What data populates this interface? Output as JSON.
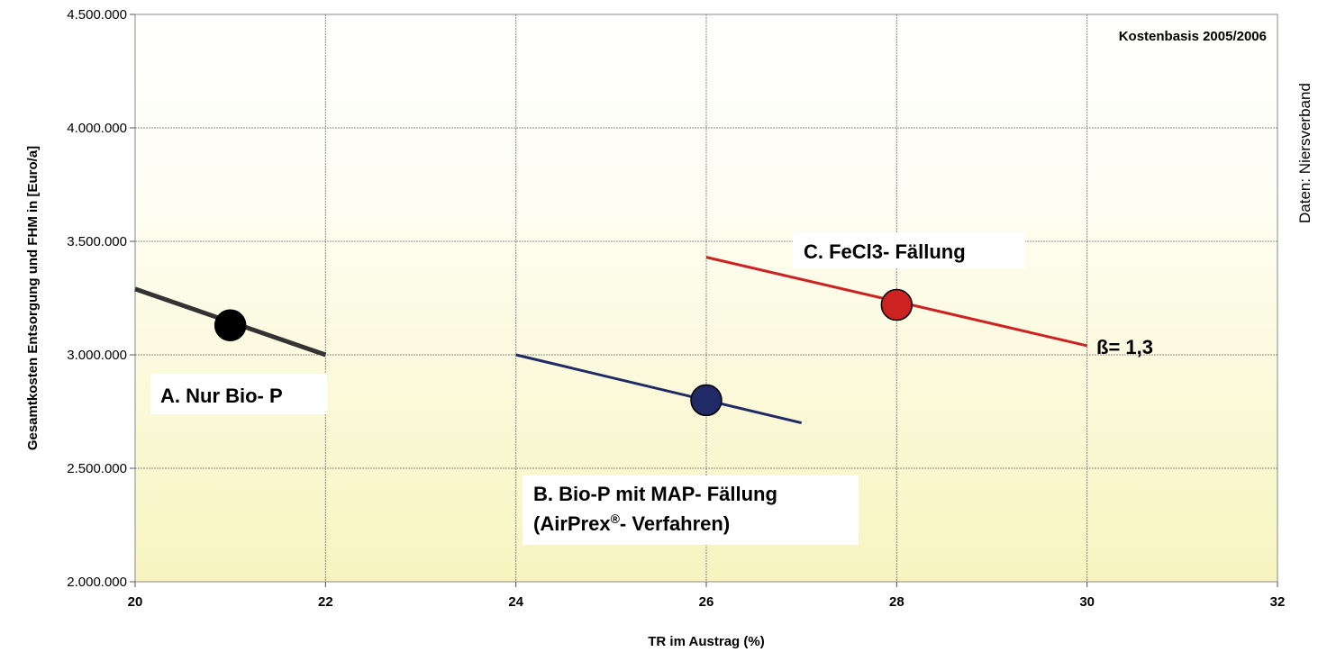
{
  "chart_data": {
    "type": "line",
    "xlabel": "TR im Austrag (%)",
    "ylabel": "Gesamtkosten Entsorgung und FHM in [Euro/a]",
    "xlim": [
      20,
      32
    ],
    "ylim": [
      2000000,
      4500000
    ],
    "x_ticks": [
      20,
      22,
      24,
      26,
      28,
      30,
      32
    ],
    "x_tick_labels": [
      "20",
      "22",
      "24",
      "26",
      "28",
      "30",
      "32"
    ],
    "y_ticks": [
      2000000,
      2500000,
      3000000,
      3500000,
      4000000,
      4500000
    ],
    "y_tick_labels": [
      "2.000.000",
      "2.500.000",
      "3.000.000",
      "3.500.000",
      "4.000.000",
      "4.500.000"
    ],
    "grid": true,
    "series": [
      {
        "name": "A. Nur Bio- P",
        "color": "#333333",
        "x": [
          20,
          22
        ],
        "values": [
          3290000,
          3000000
        ],
        "marker": {
          "x": 21,
          "y": 3130000,
          "color": "#000000"
        }
      },
      {
        "name": "B. Bio-P mit MAP- Fällung (AirPrex®- Verfahren)",
        "name_line1": "B. Bio-P mit MAP- Fällung",
        "name_line2_main": "(AirPrex",
        "name_line2_sup": "®",
        "name_line2_rest": "- Verfahren)",
        "color": "#1f2a66",
        "x": [
          24,
          27
        ],
        "values": [
          3000000,
          2700000
        ],
        "marker": {
          "x": 26,
          "y": 2800000,
          "color": "#1f2a66"
        }
      },
      {
        "name": "C. FeCl3- Fällung",
        "color": "#cc2222",
        "x": [
          26,
          30
        ],
        "values": [
          3430000,
          3040000
        ],
        "marker": {
          "x": 28,
          "y": 3220000,
          "color": "#cc2222"
        }
      }
    ],
    "annotations": {
      "beta": "ß= 1,3",
      "cost_basis": "Kostenbasis 2005/2006",
      "source": "Daten: Niersverband"
    }
  }
}
